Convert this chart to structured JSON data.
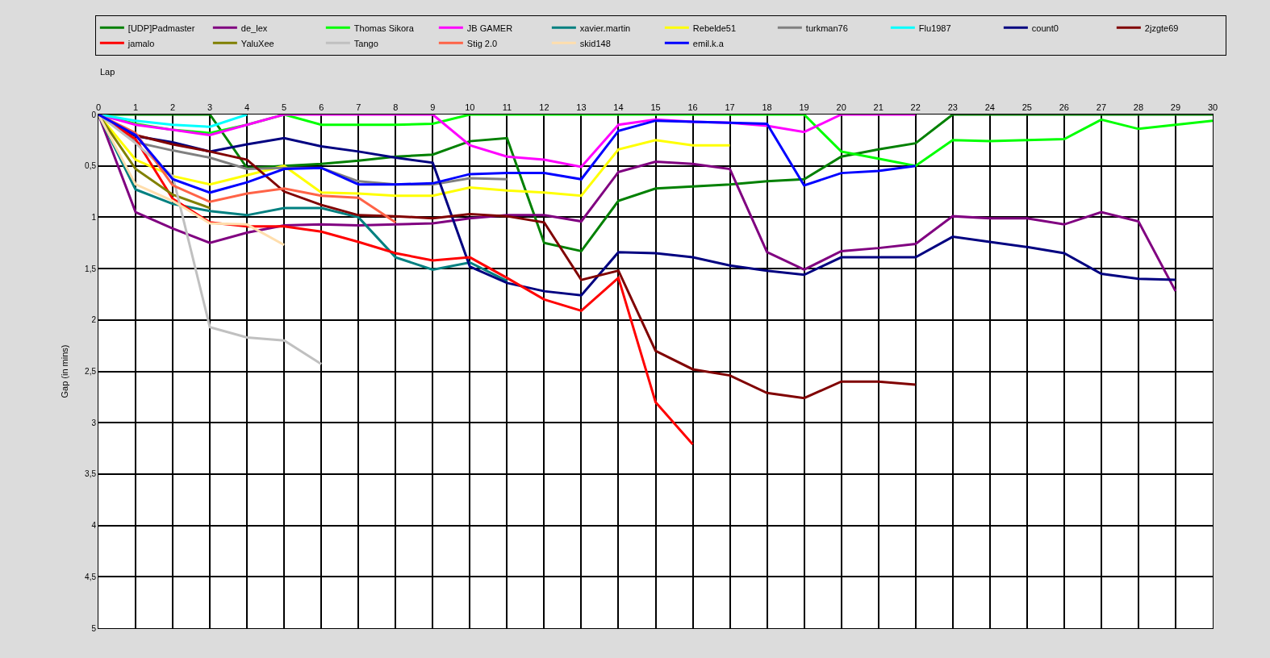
{
  "chart_data": {
    "type": "line",
    "xlabel": "Lap",
    "ylabel": "Gap (in mins)",
    "x": [
      0,
      1,
      2,
      3,
      4,
      5,
      6,
      7,
      8,
      9,
      10,
      11,
      12,
      13,
      14,
      15,
      16,
      17,
      18,
      19,
      20,
      21,
      22,
      23,
      24,
      25,
      26,
      27,
      28,
      29,
      30
    ],
    "xlim": [
      0,
      30
    ],
    "xticks": [
      0,
      1,
      2,
      3,
      4,
      5,
      6,
      7,
      8,
      9,
      10,
      11,
      12,
      13,
      14,
      15,
      16,
      17,
      18,
      19,
      20,
      21,
      22,
      23,
      24,
      25,
      26,
      27,
      28,
      29,
      30
    ],
    "ylim": [
      5,
      0
    ],
    "yticks": [
      0,
      {
        "value": 0.5,
        "label": "0,5"
      },
      1,
      {
        "value": 1.5,
        "label": "1,5"
      },
      2,
      {
        "value": 2.5,
        "label": "2,5"
      },
      3,
      {
        "value": 3.5,
        "label": "3,5"
      },
      4,
      {
        "value": 4.5,
        "label": "4,5"
      },
      5
    ],
    "grid": true,
    "legend": "top",
    "line_style": "solid",
    "marker": "none",
    "series": [
      {
        "name": "[UDP]Padmaster",
        "color": "#008000",
        "values": [
          0,
          0,
          0,
          0,
          0.52,
          0.5,
          0.48,
          0.45,
          0.41,
          0.39,
          0.26,
          0.23,
          1.25,
          1.33,
          0.84,
          0.72,
          0.7,
          0.68,
          0.65,
          0.63,
          0.41,
          0.34,
          0.28,
          0,
          0,
          0,
          0,
          0,
          0,
          0,
          0
        ]
      },
      {
        "name": "de_lex",
        "color": "#800080",
        "values": [
          0,
          0.95,
          1.11,
          1.25,
          1.15,
          1.08,
          1.07,
          1.08,
          1.07,
          1.06,
          1.01,
          0.98,
          0.98,
          1.04,
          0.56,
          0.46,
          0.48,
          0.53,
          1.34,
          1.51,
          1.33,
          1.3,
          1.26,
          0.99,
          1.01,
          1.01,
          1.07,
          0.95,
          1.04,
          1.72,
          null
        ]
      },
      {
        "name": "Thomas Sikora",
        "color": "#00ff00",
        "values": [
          0,
          0.09,
          0.15,
          0.18,
          0.1,
          0,
          0.1,
          0.1,
          0.1,
          0.09,
          0,
          0,
          0,
          0,
          0,
          0,
          0,
          0,
          0,
          0,
          0.36,
          0.43,
          0.5,
          0.25,
          0.26,
          0.25,
          0.24,
          0.05,
          0.14,
          0.1,
          0.06
        ]
      },
      {
        "name": "JB GAMER",
        "color": "#ff00ff",
        "values": [
          0,
          0.1,
          0.15,
          0.2,
          0.1,
          0,
          0,
          0,
          0,
          0,
          0.3,
          0.41,
          0.44,
          0.51,
          0.1,
          0.05,
          0.07,
          0.08,
          0.11,
          0.17,
          0,
          0,
          0,
          null,
          null,
          null,
          null,
          null,
          null,
          null,
          null
        ]
      },
      {
        "name": "xavier.martin",
        "color": "#008080",
        "values": [
          0,
          0.73,
          0.87,
          0.94,
          0.98,
          0.91,
          0.91,
          1.0,
          1.39,
          1.51,
          1.44,
          1.62,
          null,
          null,
          null,
          null,
          null,
          null,
          null,
          null,
          null,
          null,
          null,
          null,
          null,
          null,
          null,
          null,
          null,
          null,
          null
        ]
      },
      {
        "name": "Rebelde51",
        "color": "#ffff00",
        "values": [
          0,
          0.44,
          0.6,
          0.68,
          0.59,
          0.5,
          0.76,
          0.77,
          0.79,
          0.79,
          0.71,
          0.74,
          0.76,
          0.79,
          0.34,
          0.25,
          0.3,
          0.3,
          null,
          null,
          null,
          null,
          null,
          null,
          null,
          null,
          null,
          null,
          null,
          null,
          null
        ]
      },
      {
        "name": "turkman76",
        "color": "#808080",
        "values": [
          0,
          0.27,
          0.35,
          0.42,
          0.53,
          0.52,
          0.52,
          0.65,
          0.68,
          0.68,
          0.62,
          0.63,
          null,
          null,
          null,
          null,
          null,
          null,
          null,
          null,
          null,
          null,
          null,
          null,
          null,
          null,
          null,
          null,
          null,
          null,
          null
        ]
      },
      {
        "name": "Flu1987",
        "color": "#00ffff",
        "values": [
          0,
          0.06,
          0.1,
          0.12,
          0,
          null,
          null,
          null,
          null,
          null,
          null,
          null,
          null,
          null,
          null,
          null,
          null,
          null,
          null,
          null,
          null,
          null,
          null,
          null,
          null,
          null,
          null,
          null,
          null,
          null,
          null
        ]
      },
      {
        "name": "count0",
        "color": "#000080",
        "values": [
          0,
          0.21,
          0.27,
          0.36,
          0.29,
          0.23,
          0.31,
          0.36,
          0.42,
          0.47,
          1.48,
          1.64,
          1.72,
          1.76,
          1.34,
          1.35,
          1.39,
          1.47,
          1.52,
          1.56,
          1.39,
          1.39,
          1.39,
          1.19,
          1.24,
          1.29,
          1.35,
          1.55,
          1.6,
          1.61,
          null
        ]
      },
      {
        "name": "2jzgte69",
        "color": "#800000",
        "values": [
          0,
          0.2,
          0.29,
          0.36,
          0.44,
          0.75,
          0.88,
          0.98,
          0.99,
          1.01,
          0.97,
          0.99,
          1.05,
          1.61,
          1.52,
          2.3,
          2.48,
          2.54,
          2.71,
          2.76,
          2.6,
          2.6,
          2.63,
          null,
          null,
          null,
          null,
          null,
          null,
          null,
          null
        ]
      },
      {
        "name": "jamalo",
        "color": "#ff0000",
        "values": [
          0,
          0.24,
          0.82,
          1.05,
          1.09,
          1.09,
          1.14,
          1.24,
          1.35,
          1.42,
          1.39,
          1.59,
          1.8,
          1.91,
          1.59,
          2.8,
          3.21,
          null,
          null,
          null,
          null,
          null,
          null,
          null,
          null,
          null,
          null,
          null,
          null,
          null,
          null
        ]
      },
      {
        "name": "YaluXee",
        "color": "#808000",
        "values": [
          0,
          0.53,
          0.78,
          0.91,
          null,
          null,
          null,
          null,
          null,
          null,
          null,
          null,
          null,
          null,
          null,
          null,
          null,
          null,
          null,
          null,
          null,
          null,
          null,
          null,
          null,
          null,
          null,
          null,
          null,
          null,
          null
        ]
      },
      {
        "name": "Tango",
        "color": "#c0c0c0",
        "values": [
          0,
          0.28,
          0.6,
          2.07,
          2.17,
          2.2,
          2.43,
          null,
          null,
          null,
          null,
          null,
          null,
          null,
          null,
          null,
          null,
          null,
          null,
          null,
          null,
          null,
          null,
          null,
          null,
          null,
          null,
          null,
          null,
          null,
          null
        ]
      },
      {
        "name": "Stig 2.0",
        "color": "#ff6347",
        "values": [
          0,
          0.18,
          0.69,
          0.85,
          0.77,
          0.72,
          0.79,
          0.81,
          1.05,
          null,
          null,
          null,
          null,
          null,
          null,
          null,
          null,
          null,
          null,
          null,
          null,
          null,
          null,
          null,
          null,
          null,
          null,
          null,
          null,
          null,
          null
        ]
      },
      {
        "name": "skid148",
        "color": "#ffdead",
        "values": [
          0,
          0.68,
          0.84,
          1.06,
          1.07,
          1.27,
          null,
          null,
          null,
          null,
          null,
          null,
          null,
          null,
          null,
          null,
          null,
          null,
          null,
          null,
          null,
          null,
          null,
          null,
          null,
          null,
          null,
          null,
          null,
          null,
          null
        ]
      },
      {
        "name": "emil.k.a",
        "color": "#0000ff",
        "values": [
          0,
          0.2,
          0.63,
          0.76,
          0.66,
          0.53,
          0.52,
          0.68,
          0.68,
          0.67,
          0.58,
          0.57,
          0.57,
          0.63,
          0.16,
          0.06,
          0.07,
          0.08,
          0.09,
          0.69,
          0.57,
          0.55,
          0.5,
          null,
          null,
          null,
          null,
          null,
          null,
          null,
          null
        ]
      }
    ]
  }
}
